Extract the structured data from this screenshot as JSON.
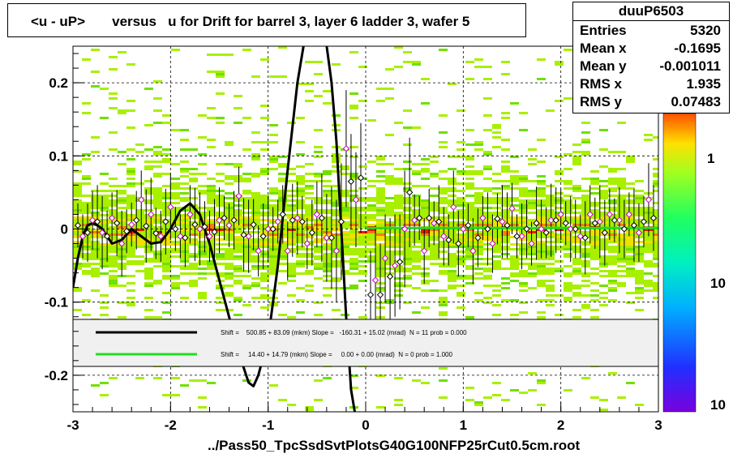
{
  "title": "<u - uP>       versus   u for Drift for barrel 3, layer 6 ladder 3, wafer 5",
  "xlabel": "../Pass50_TpcSsdSvtPlotsG40G100NFP25rCut0.5cm.root",
  "stats": {
    "name": "duuP6503",
    "rows": [
      {
        "key": "Entries",
        "value": "5320"
      },
      {
        "key": "Mean x",
        "value": "-0.1695"
      },
      {
        "key": "Mean y",
        "value": "-0.001011"
      },
      {
        "key": "RMS x",
        "value": "1.935"
      },
      {
        "key": "RMS y",
        "value": "0.07483"
      }
    ]
  },
  "legend": {
    "entries": [
      {
        "color": "#000000",
        "text": "Shift =    500.85 + 83.09 (mkm) Slope =   -160.31 + 15.02 (mrad)  N = 11 prob = 0.000"
      },
      {
        "color": "#22dd22",
        "text": "Shift =     14.40 + 14.79 (mkm) Slope =     0.00 + 0.00 (mrad)  N = 0 prob = 1.000"
      }
    ]
  },
  "colors": {
    "fit_black": "#000000",
    "fit_green": "#22dd22",
    "profile_marker_a": "#000000",
    "profile_marker_b": "#cc00cc"
  },
  "chart_data": {
    "type": "heatmap",
    "xlim": [
      -3,
      3
    ],
    "ylim": [
      -0.25,
      0.25
    ],
    "x_ticks": [
      -3,
      -2,
      -1,
      0,
      1,
      2,
      3
    ],
    "x_tick_labels": [
      "-3",
      "-2",
      "-1",
      "0",
      "1",
      "2",
      "3"
    ],
    "y_ticks": [
      -0.2,
      -0.1,
      0,
      0.1,
      0.2
    ],
    "y_tick_labels": [
      "-0.2",
      "-0.1",
      "0",
      "0.1",
      "0.2"
    ],
    "colorbar_tick_labels": [
      "1",
      "10",
      "10"
    ],
    "grid": true,
    "profile_a": {
      "x": [
        -2.95,
        -2.85,
        -2.75,
        -2.65,
        -2.55,
        -2.45,
        -2.35,
        -2.25,
        -2.15,
        -2.05,
        -1.95,
        -1.85,
        -1.75,
        -1.65,
        -1.55,
        -1.45,
        -1.35,
        -1.25,
        -1.15,
        -1.05,
        -0.95,
        -0.85,
        -0.75,
        -0.65,
        -0.55,
        -0.45,
        -0.35,
        -0.25,
        -0.15,
        -0.05,
        0.05,
        0.15,
        0.25,
        0.35,
        0.45,
        0.55,
        0.65,
        0.75,
        0.85,
        0.95,
        1.05,
        1.15,
        1.25,
        1.35,
        1.45,
        1.55,
        1.65,
        1.75,
        1.85,
        1.95,
        2.05,
        2.15,
        2.25,
        2.35,
        2.45,
        2.55,
        2.65,
        2.75,
        2.85,
        2.95
      ],
      "y": [
        0.005,
        -0.005,
        0.01,
        -0.01,
        0.008,
        -0.003,
        0.012,
        0.004,
        -0.006,
        0.01,
        0.0,
        -0.012,
        0.006,
        0.003,
        -0.004,
        0.015,
        0.012,
        -0.008,
        0.006,
        -0.01,
        0.0,
        0.02,
        0.012,
        0.01,
        -0.005,
        0.015,
        -0.012,
        0.01,
        0.065,
        0.07,
        -0.09,
        -0.09,
        -0.065,
        -0.045,
        0.05,
        0.015,
        0.015,
        0.01,
        -0.015,
        -0.02,
        0.005,
        -0.012,
        0.0,
        0.014,
        0.005,
        -0.01,
        0.0,
        0.008,
        -0.005,
        0.012,
        0.008,
        0.0,
        -0.012,
        0.008,
        -0.005,
        0.012,
        0.0,
        0.005,
        0.01,
        0.015
      ]
    },
    "profile_b": {
      "x": [
        -2.9,
        -2.8,
        -2.7,
        -2.6,
        -2.5,
        -2.4,
        -2.3,
        -2.2,
        -2.1,
        -2.0,
        -1.9,
        -1.8,
        -1.7,
        -1.6,
        -1.5,
        -1.4,
        -1.3,
        -1.2,
        -1.1,
        -1.0,
        -0.9,
        -0.8,
        -0.7,
        -0.6,
        -0.5,
        -0.4,
        -0.3,
        -0.2,
        -0.1,
        0.1,
        0.2,
        0.3,
        0.4,
        0.5,
        0.6,
        0.7,
        0.8,
        0.9,
        1.0,
        1.1,
        1.2,
        1.3,
        1.4,
        1.5,
        1.6,
        1.7,
        1.8,
        1.9,
        2.0,
        2.1,
        2.2,
        2.3,
        2.4,
        2.5,
        2.6,
        2.7,
        2.8,
        2.9
      ],
      "y": [
        -0.01,
        0.012,
        -0.005,
        0.015,
        -0.02,
        0.006,
        0.04,
        0.02,
        -0.01,
        0.03,
        -0.01,
        0.02,
        0.0,
        -0.01,
        0.012,
        0.005,
        0.045,
        -0.01,
        -0.03,
        0.0,
        0.01,
        -0.03,
        0.015,
        -0.02,
        0.02,
        -0.012,
        -0.03,
        0.11,
        0.04,
        -0.07,
        -0.04,
        -0.05,
        0.0,
        0.012,
        -0.03,
        0.008,
        -0.01,
        0.03,
        0.0,
        -0.03,
        0.015,
        -0.02,
        0.01,
        0.028,
        -0.01,
        -0.02,
        0.0,
        0.012,
        0.02,
        0.0,
        -0.01,
        0.02,
        0.01,
        0.02,
        0.012,
        0.02,
        -0.005,
        0.04
      ]
    },
    "fit_black": {
      "x": [
        -3.0,
        -2.95,
        -2.9,
        -2.85,
        -2.8,
        -2.75,
        -2.7,
        -2.6,
        -2.5,
        -2.4,
        -2.3,
        -2.2,
        -2.1,
        -2.0,
        -1.9,
        -1.8,
        -1.7,
        -1.6,
        -1.5,
        -1.4,
        -1.3,
        -1.2,
        -1.15,
        -1.1,
        -1.0,
        -0.9,
        -0.8,
        -0.7,
        -0.6,
        -0.55,
        -0.5,
        -0.45,
        -0.4,
        -0.35,
        -0.3,
        -0.25,
        -0.2,
        -0.15,
        -0.1,
        -0.05
      ],
      "y": [
        -0.08,
        -0.04,
        -0.01,
        0.005,
        0.008,
        0.005,
        0.0,
        -0.02,
        -0.015,
        0.0,
        -0.01,
        -0.02,
        -0.018,
        0.0,
        0.025,
        0.035,
        0.02,
        -0.02,
        -0.07,
        -0.12,
        -0.17,
        -0.21,
        -0.215,
        -0.2,
        -0.15,
        -0.05,
        0.08,
        0.2,
        0.28,
        0.3,
        0.3,
        0.28,
        0.25,
        0.2,
        0.12,
        0.0,
        -0.12,
        -0.22,
        -0.26,
        -0.25
      ]
    },
    "fit_green": {
      "x": [
        0.0,
        3.0
      ],
      "y": [
        0.0014,
        0.0014
      ]
    }
  }
}
